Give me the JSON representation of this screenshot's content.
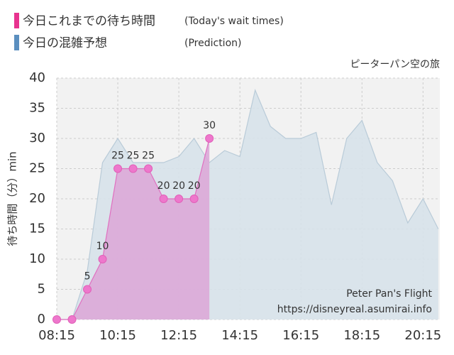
{
  "chart_data": {
    "type": "area",
    "title": "ピーターパン空の旅",
    "legend": [
      {
        "label": "今日これまでの待ち時間",
        "note": "(Today's wait times)",
        "color": "#e8338f"
      },
      {
        "label": "今日の混雑予想",
        "note": "(Prediction)",
        "color": "#5b8fbf"
      }
    ],
    "ylabel": "待ち時間（分）min",
    "watermark": [
      "Peter Pan's Flight",
      "https://disneyreal.asumirai.info"
    ],
    "xlim": [
      495,
      1248
    ],
    "ylim": [
      0,
      40
    ],
    "yticks": [
      0,
      5,
      10,
      15,
      20,
      25,
      30,
      35,
      40
    ],
    "xticks": [
      {
        "value": 495,
        "label": "08:15"
      },
      {
        "value": 615,
        "label": "10:15"
      },
      {
        "value": 735,
        "label": "12:15"
      },
      {
        "value": 855,
        "label": "14:15"
      },
      {
        "value": 975,
        "label": "16:15"
      },
      {
        "value": 1095,
        "label": "18:15"
      },
      {
        "value": 1215,
        "label": "20:15"
      }
    ],
    "grid": true,
    "series": [
      {
        "name": "今日の混雑予想",
        "color": "#b9cbd8",
        "fill": "#d7e2ea",
        "x": [
          495,
          525,
          555,
          585,
          615,
          645,
          675,
          705,
          735,
          765,
          795,
          825,
          855,
          885,
          915,
          945,
          975,
          1005,
          1035,
          1065,
          1095,
          1125,
          1155,
          1185,
          1215,
          1245
        ],
        "values": [
          0,
          0,
          8,
          26,
          30,
          26,
          26,
          26,
          27,
          30,
          26,
          28,
          27,
          38,
          32,
          30,
          30,
          31,
          19,
          30,
          33,
          26,
          23,
          16,
          20,
          15
        ]
      },
      {
        "name": "今日これまでの待ち時間",
        "color": "#e070c0",
        "fill": "#dba8d8",
        "x": [
          495,
          525,
          555,
          585,
          615,
          645,
          675,
          705,
          735,
          765,
          795
        ],
        "values": [
          0,
          0,
          5,
          10,
          25,
          25,
          25,
          20,
          20,
          20,
          30
        ]
      }
    ]
  }
}
